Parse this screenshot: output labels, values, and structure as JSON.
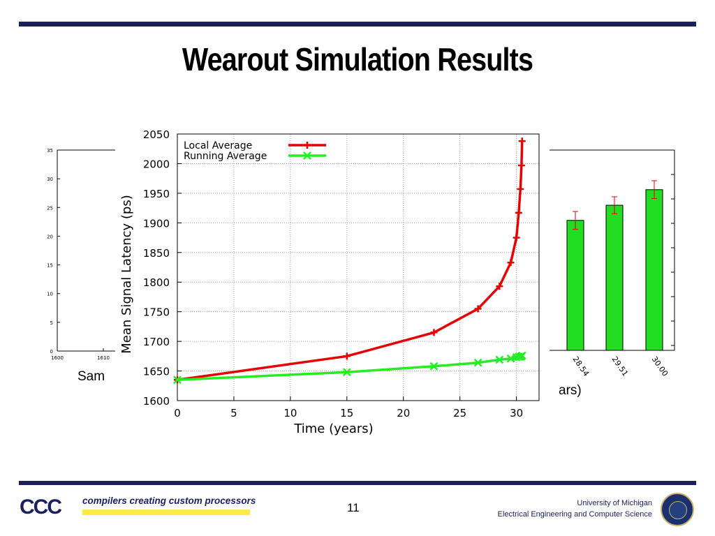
{
  "slide": {
    "title": "Wearout Simulation Results",
    "page_number": "11",
    "back_left_text": "Sam",
    "back_right_text": "ars)"
  },
  "footer": {
    "tagline": "compilers creating custom processors",
    "logo_text": "CCC",
    "university_line1": "University of Michigan",
    "university_line2": "Electrical Engineering and Computer Science"
  },
  "colors": {
    "rule": "#1a1f5e",
    "red_series": "#e60000",
    "green_series": "#22ee22",
    "bar_fill": "#22dd22"
  },
  "chart_data": [
    {
      "type": "line",
      "title": "",
      "xlabel": "Time (years)",
      "ylabel": "Mean Signal Latency (ps)",
      "xlim": [
        0,
        32
      ],
      "ylim": [
        1600,
        2050
      ],
      "xticks": [
        "0",
        "5",
        "10",
        "15",
        "20",
        "25",
        "30"
      ],
      "yticks": [
        "1600",
        "1650",
        "1700",
        "1750",
        "1800",
        "1850",
        "1900",
        "1950",
        "2000",
        "2050"
      ],
      "grid": true,
      "legend": "top-left",
      "series": [
        {
          "name": "Local Average",
          "color": "#e60000",
          "marker": "plus",
          "x": [
            0,
            15,
            22.7,
            26.6,
            28.5,
            29.5,
            30.0,
            30.2,
            30.35,
            30.45,
            30.5
          ],
          "y": [
            1635,
            1675,
            1715,
            1755,
            1793,
            1833,
            1875,
            1917,
            1957,
            1997,
            2038
          ]
        },
        {
          "name": "Running Average",
          "color": "#22ee22",
          "marker": "x",
          "x": [
            0,
            15,
            22.7,
            26.6,
            28.5,
            29.5,
            30.0,
            30.2,
            30.35,
            30.45,
            30.5
          ],
          "y": [
            1635,
            1648,
            1658,
            1664,
            1669,
            1671,
            1673,
            1674,
            1674,
            1675,
            1676
          ]
        }
      ]
    },
    {
      "type": "bar",
      "categories": [
        "28.54",
        "29.51",
        "30.00"
      ],
      "values": [
        1892,
        1926,
        1961
      ],
      "error": [
        20,
        19,
        20
      ]
    },
    {
      "type": "line",
      "yticks": [
        "0",
        "5",
        "10",
        "15",
        "20",
        "25",
        "30",
        "35"
      ],
      "xticks": [
        "1600",
        "1610"
      ]
    }
  ]
}
